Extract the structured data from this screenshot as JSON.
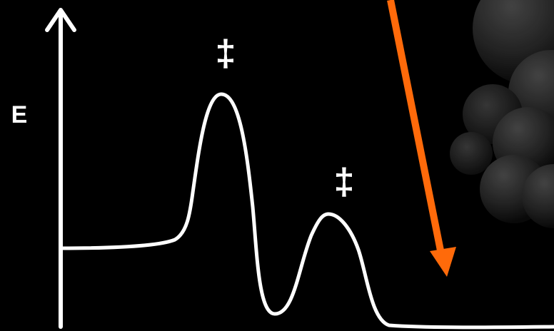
{
  "diagram": {
    "axis": {
      "label": "E"
    },
    "transition_states": [
      {
        "label": "‡"
      },
      {
        "label": "‡"
      }
    ],
    "colors": {
      "background": "#000000",
      "curve": "#ffffff",
      "axis": "#ffffff",
      "arrow": "#ff6a0a",
      "molecule": "#3a3a3a"
    }
  }
}
